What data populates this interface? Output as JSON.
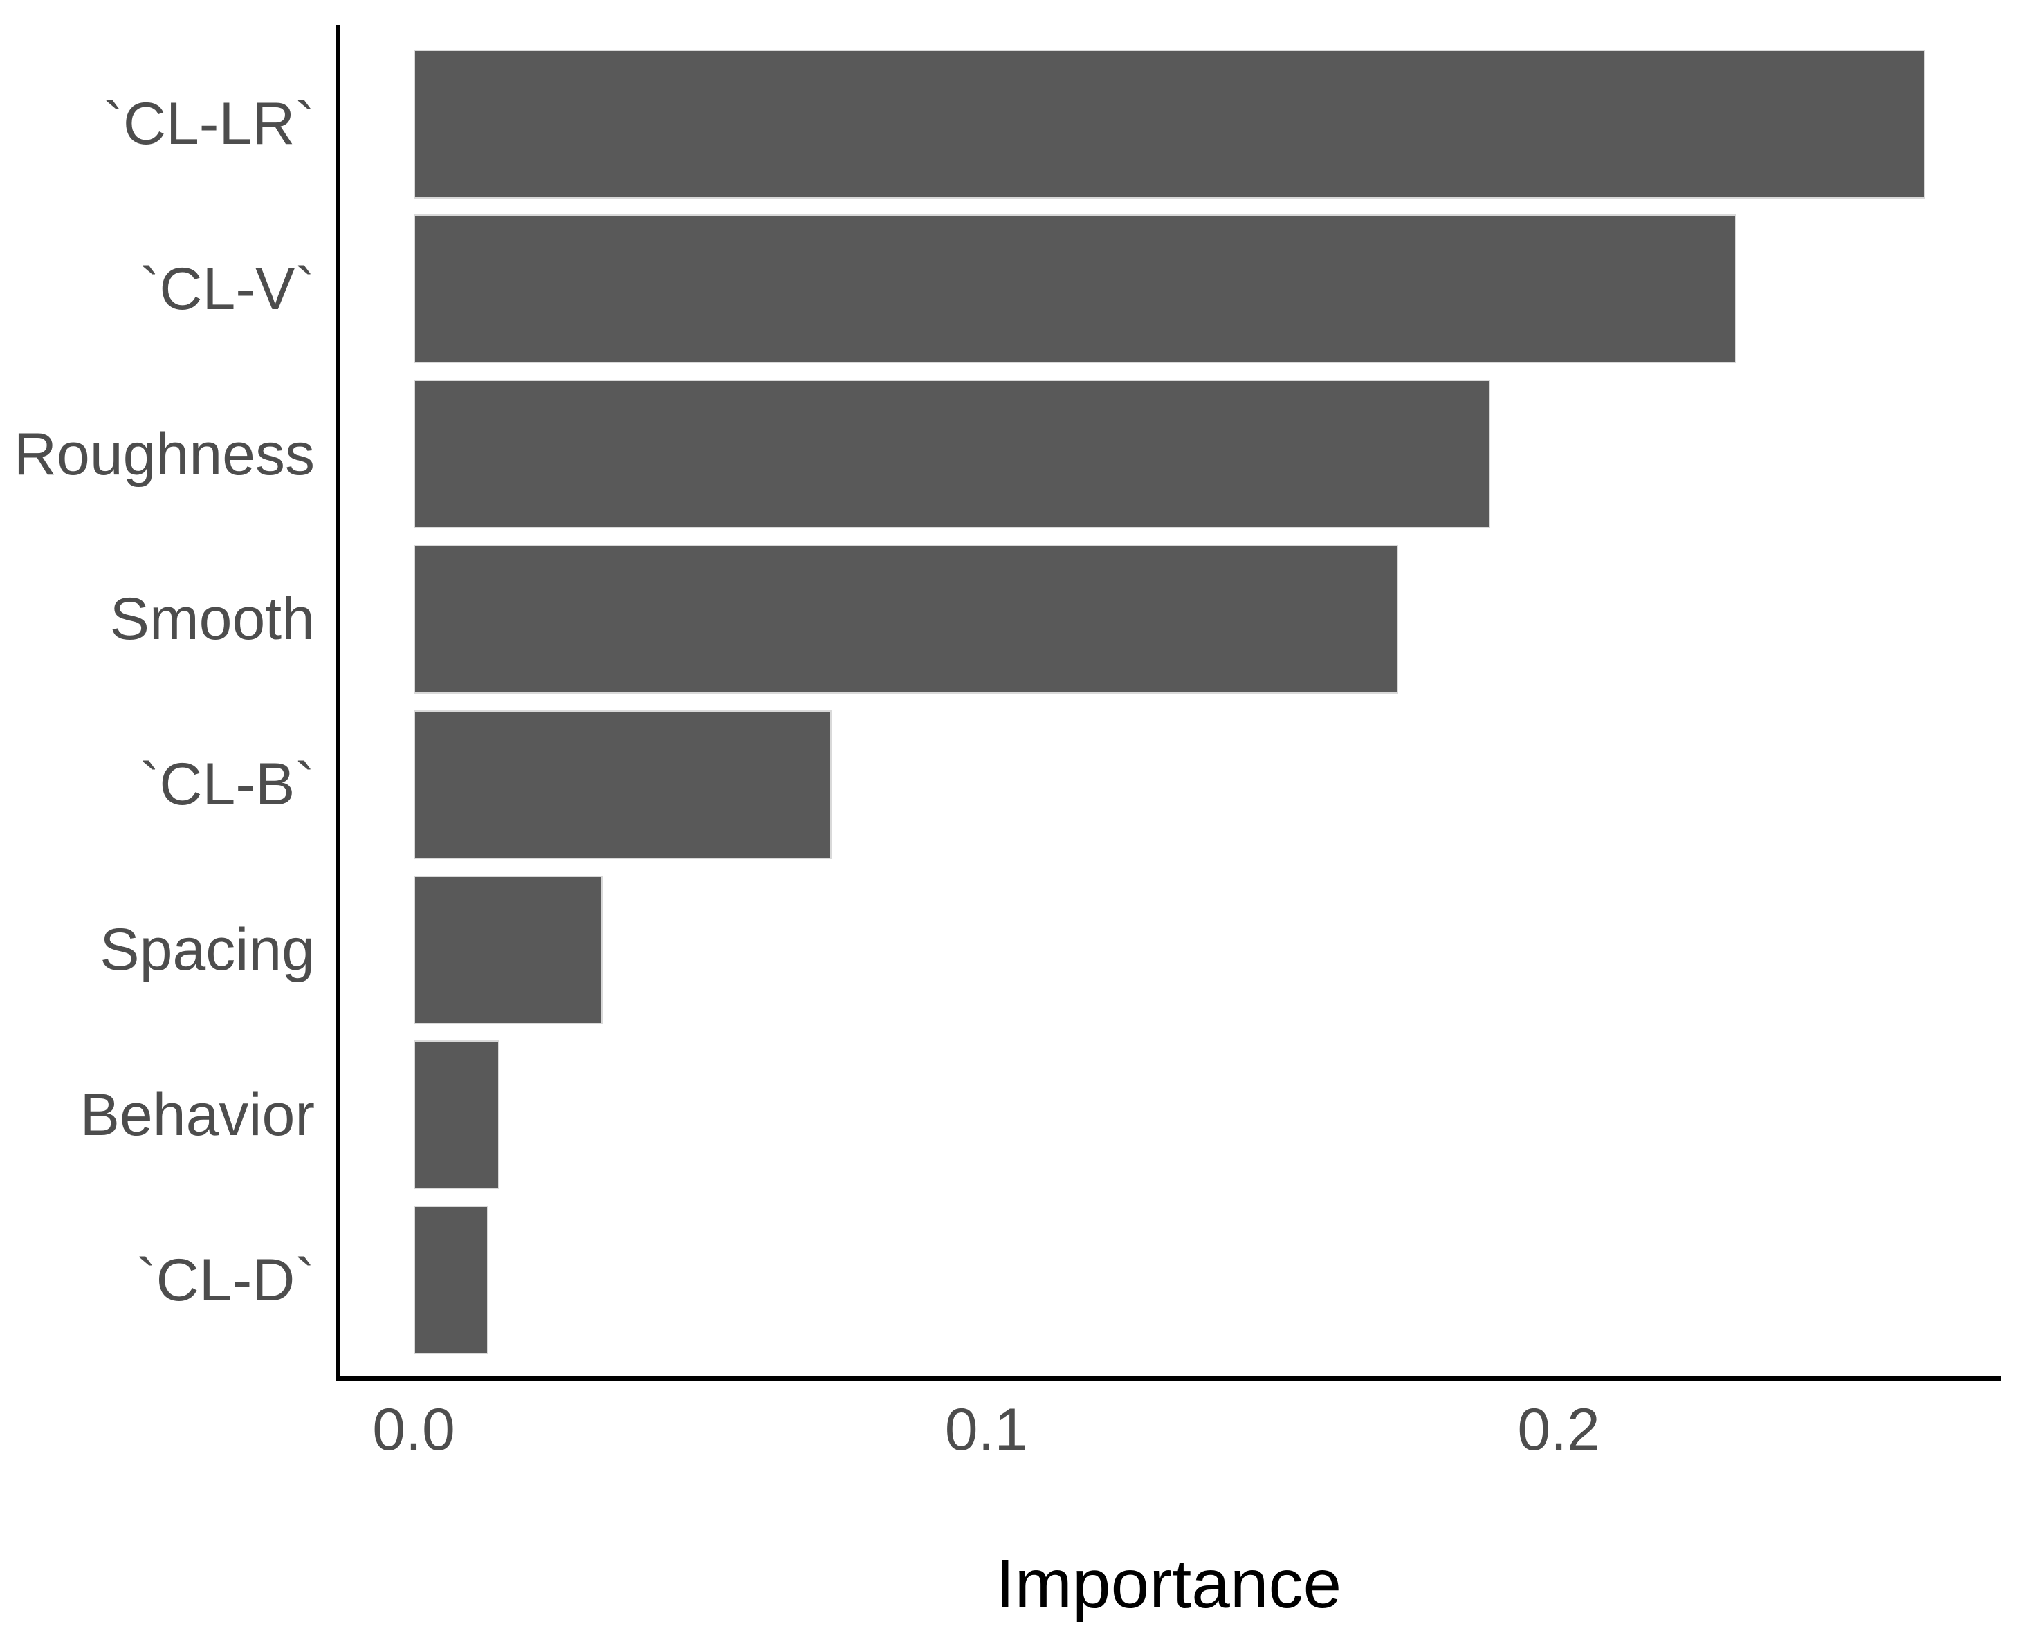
{
  "chart_data": {
    "type": "bar",
    "orientation": "horizontal",
    "title": "",
    "xlabel": "Importance",
    "ylabel": "",
    "categories": [
      "`CL-LR`",
      "`CL-V`",
      "Roughness",
      "Smooth",
      "`CL-B`",
      "Spacing",
      "Behavior",
      "`CL-D`"
    ],
    "values": [
      0.264,
      0.231,
      0.188,
      0.172,
      0.073,
      0.033,
      0.015,
      0.013
    ],
    "x_ticks": [
      0.0,
      0.1,
      0.2
    ],
    "x_tick_labels": [
      "0.0",
      "0.1",
      "0.2"
    ],
    "xlim": [
      0,
      0.2772
    ],
    "grid": false,
    "legend": false,
    "sorted": "descending",
    "colors": {
      "bar_fill": "#595959",
      "bar_border": "#d9d9d9",
      "axis_line": "#000000",
      "axis_text": "#4d4d4d",
      "axis_title": "#000000",
      "background": "#ffffff"
    }
  }
}
